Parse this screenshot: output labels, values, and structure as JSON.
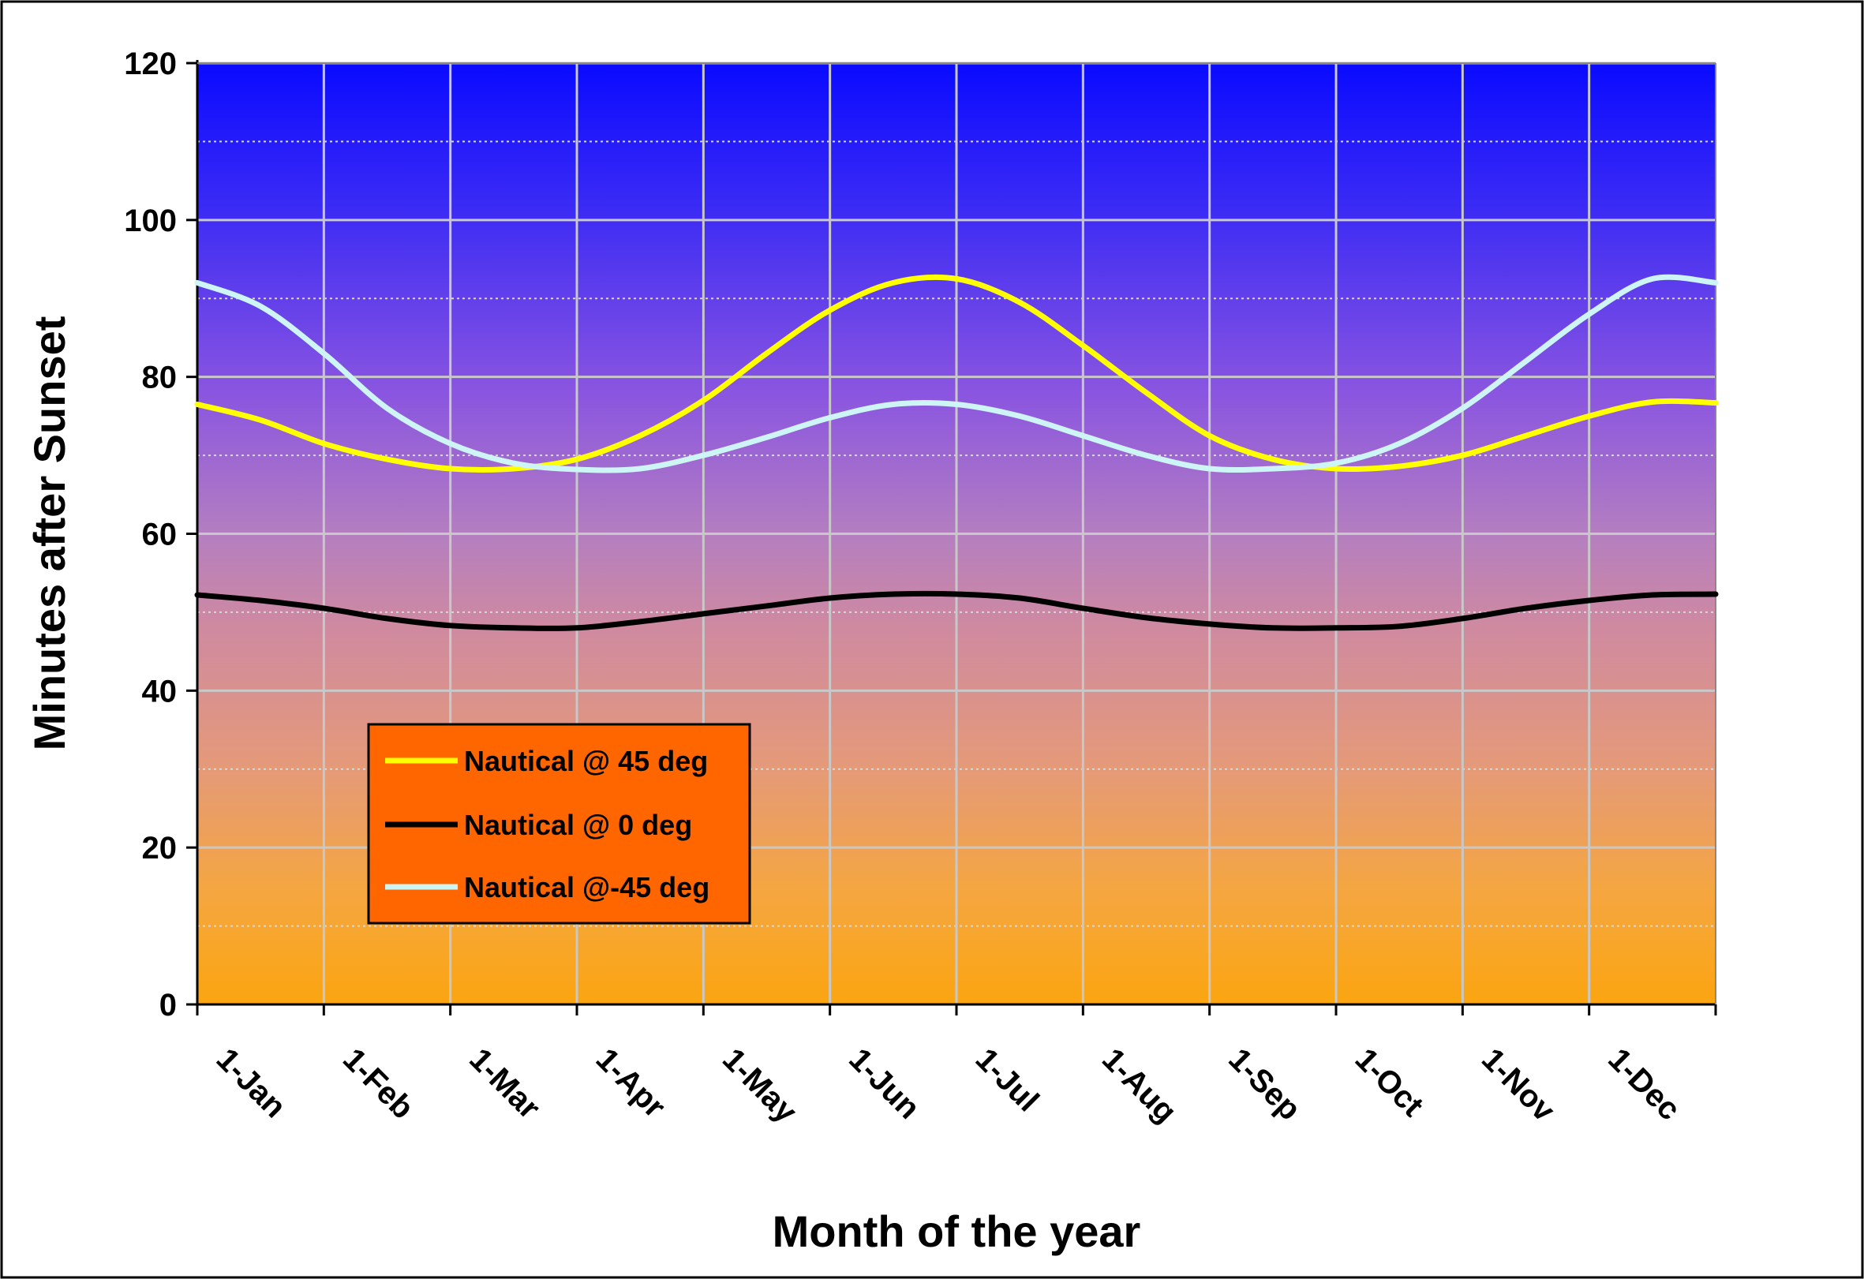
{
  "chart_data": {
    "type": "line",
    "title": "",
    "xlabel": "Month of the year",
    "ylabel": "Minutes after Sunset",
    "ylim": [
      0,
      120
    ],
    "yticks": [
      0,
      20,
      40,
      60,
      80,
      100,
      120
    ],
    "xticks": [
      "1-Jan",
      "1-Feb",
      "1-Mar",
      "1-Apr",
      "1-May",
      "1-Jun",
      "1-Jul",
      "1-Aug",
      "1-Sep",
      "1-Oct",
      "1-Nov",
      "1-Dec"
    ],
    "x": [
      "1-Jan",
      "15-Jan",
      "1-Feb",
      "15-Feb",
      "1-Mar",
      "15-Mar",
      "1-Apr",
      "15-Apr",
      "1-May",
      "15-May",
      "1-Jun",
      "15-Jun",
      "1-Jul",
      "15-Jul",
      "1-Aug",
      "15-Aug",
      "1-Sep",
      "15-Sep",
      "1-Oct",
      "15-Oct",
      "1-Nov",
      "15-Nov",
      "1-Dec",
      "15-Dec",
      "31-Dec"
    ],
    "grid": true,
    "legend_position": "lower-left",
    "background": "gradient blue-to-orange",
    "series": [
      {
        "name": "Nautical @ 45 deg",
        "color": "#ffff00",
        "values": [
          76.5,
          74.5,
          71.5,
          69.5,
          68.3,
          68.3,
          69.5,
          72.5,
          77,
          83,
          88.5,
          92,
          92.5,
          89.5,
          84,
          78,
          72.5,
          69.5,
          68.3,
          68.6,
          70,
          72.5,
          75,
          76.8,
          76.7
        ]
      },
      {
        "name": "Nautical @ 0 deg",
        "color": "#000000",
        "values": [
          52.2,
          51.5,
          50.5,
          49.2,
          48.3,
          48,
          48,
          48.8,
          49.8,
          50.8,
          51.8,
          52.3,
          52.3,
          51.8,
          50.5,
          49.3,
          48.5,
          48,
          48,
          48.2,
          49.2,
          50.5,
          51.5,
          52.2,
          52.3
        ]
      },
      {
        "name": "Nautical @-45 deg",
        "color": "#cdf5f5",
        "values": [
          92,
          89,
          83,
          76,
          71.5,
          69,
          68.2,
          68.3,
          70,
          72.3,
          74.8,
          76.5,
          76.5,
          75,
          72.5,
          70,
          68.3,
          68.3,
          69,
          71.5,
          76,
          82,
          88,
          92.5,
          92
        ]
      }
    ]
  }
}
